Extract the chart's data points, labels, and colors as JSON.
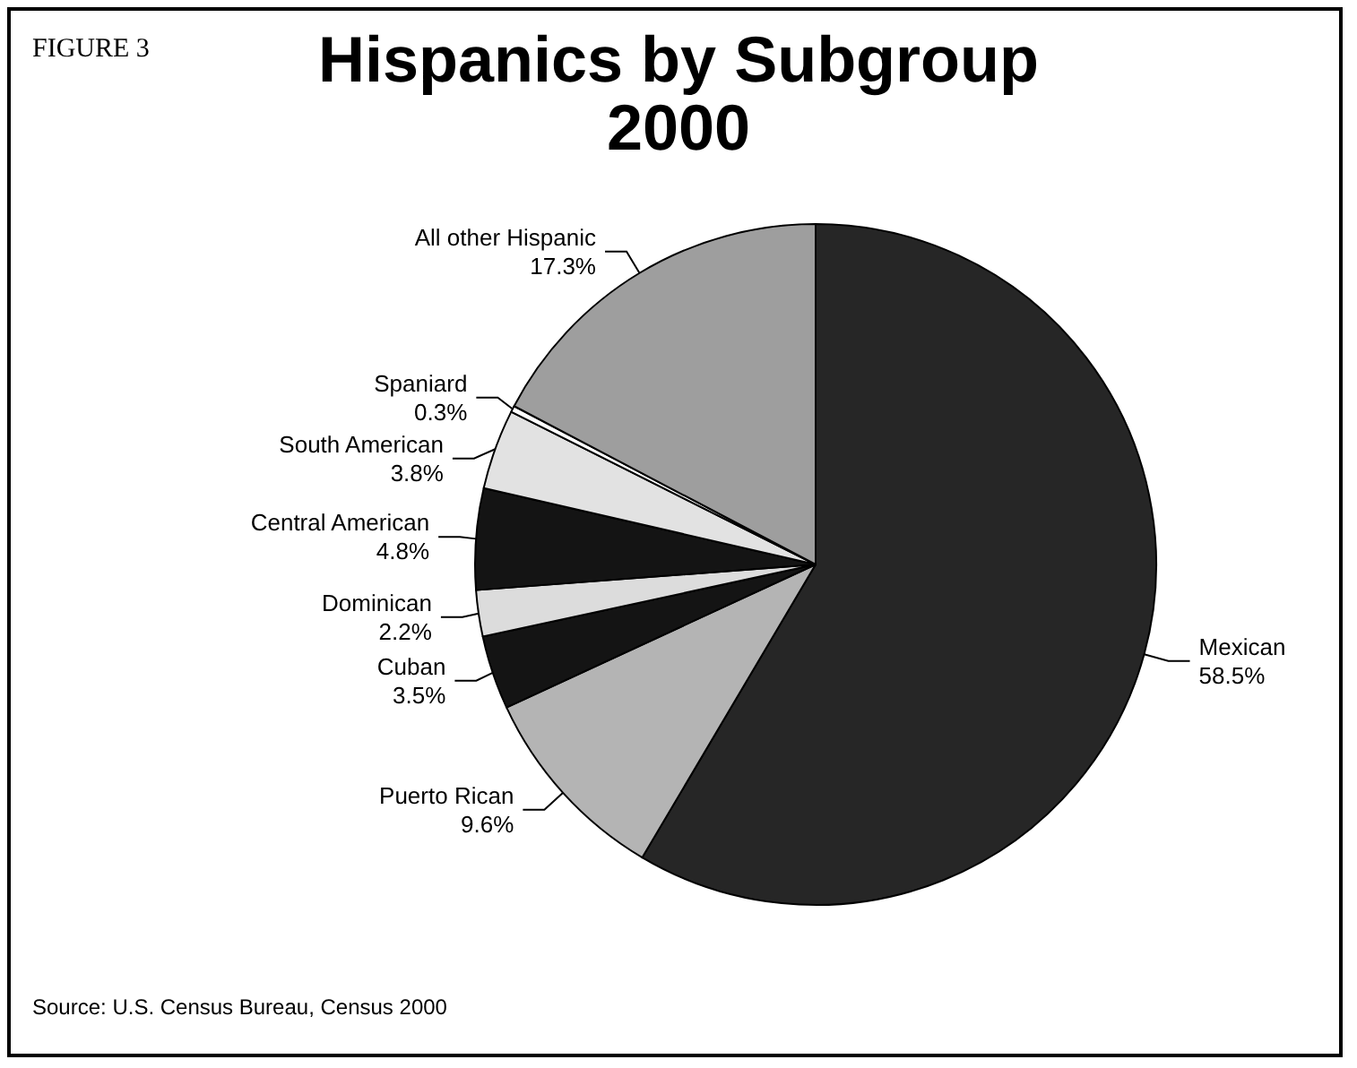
{
  "chart_data": {
    "type": "pie",
    "title": "Hispanics by Subgroup",
    "subtitle": "2000",
    "categories": [
      "Mexican",
      "Puerto Rican",
      "Cuban",
      "Dominican",
      "Central American",
      "South American",
      "Spaniard",
      "All other Hispanic"
    ],
    "values": [
      58.5,
      9.6,
      3.5,
      2.2,
      4.8,
      3.8,
      0.3,
      17.3
    ],
    "value_labels": [
      "58.5%",
      "9.6%",
      "3.5%",
      "2.2%",
      "4.8%",
      "3.8%",
      "0.3%",
      "17.3%"
    ],
    "colors": [
      "#262626",
      "#b4b4b4",
      "#141414",
      "#dcdcdc",
      "#141414",
      "#e2e2e2",
      "#ffffff",
      "#9e9e9e"
    ],
    "annotations": [
      "FIGURE 3",
      "Source: U.S. Census Bureau, Census 2000"
    ],
    "legend": false
  }
}
